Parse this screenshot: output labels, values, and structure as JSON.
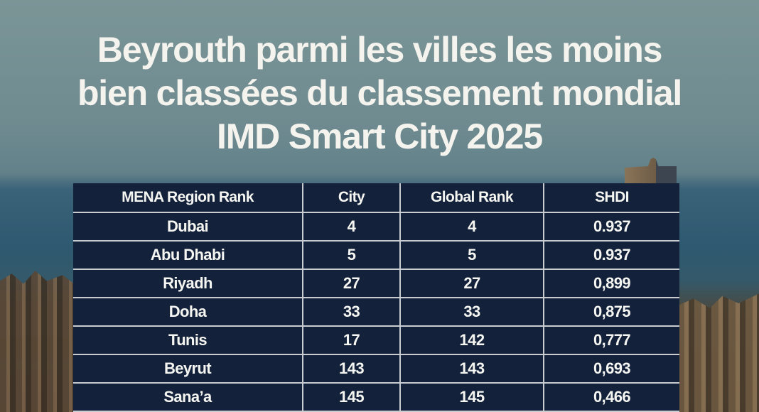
{
  "title": {
    "line1": "Beyrouth parmi les villes les moins",
    "line2": "bien classées du classement mondial",
    "line3": "IMD Smart City 2025"
  },
  "table": {
    "headers": [
      "MENA Region Rank",
      "City",
      "Global Rank",
      "SHDI"
    ],
    "rows": [
      [
        "Dubai",
        "4",
        "4",
        "0.937"
      ],
      [
        "Abu Dhabi",
        "5",
        "5",
        "0.937"
      ],
      [
        "Riyadh",
        "27",
        "27",
        "0,899"
      ],
      [
        "Doha",
        "33",
        "33",
        "0,875"
      ],
      [
        "Tunis",
        "17",
        "142",
        "0,777"
      ],
      [
        "Beyrut",
        "143",
        "143",
        "0,693"
      ],
      [
        "Sana’a",
        "145",
        "145",
        "0,466"
      ]
    ]
  }
}
